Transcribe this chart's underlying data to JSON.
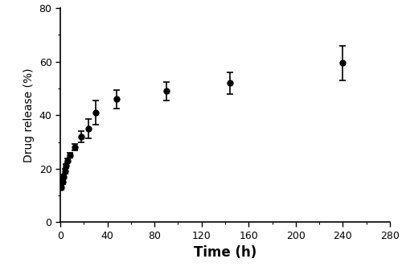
{
  "x": [
    1,
    2,
    3,
    4,
    5,
    6,
    8,
    12,
    18,
    24,
    30,
    48,
    90,
    144,
    240
  ],
  "y": [
    13,
    15,
    17,
    19,
    21,
    23,
    25,
    28,
    32,
    35,
    41,
    46,
    49,
    52,
    59.5
  ],
  "yerr": [
    0.8,
    0.8,
    0.8,
    0.8,
    0.8,
    0.8,
    0.8,
    1.2,
    2.0,
    3.5,
    4.5,
    3.5,
    3.5,
    4.0,
    6.5
  ],
  "xlabel": "Time (h)",
  "ylabel": "Drug release (%)",
  "xlim": [
    0,
    280
  ],
  "ylim": [
    0,
    80
  ],
  "xticks": [
    0,
    40,
    80,
    120,
    160,
    200,
    240,
    280
  ],
  "yticks": [
    0,
    20,
    40,
    60,
    80
  ],
  "line_color": "black",
  "marker": "o",
  "marker_color": "black",
  "marker_size": 5,
  "line_width": 1.5,
  "capsize": 3,
  "elinewidth": 1.2,
  "xlabel_fontsize": 12,
  "ylabel_fontsize": 10,
  "tick_fontsize": 9,
  "xlabel_fontweight": "bold",
  "background_color": "#ffffff"
}
